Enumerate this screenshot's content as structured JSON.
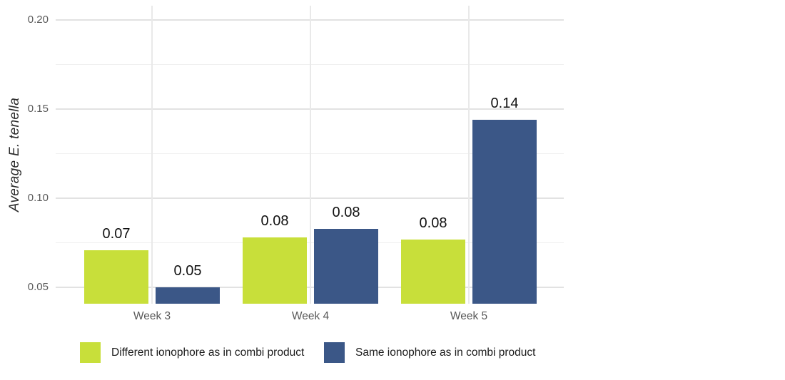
{
  "figure": {
    "y_axis_title": "Average E. tenella"
  },
  "legend": {
    "items": [
      {
        "label": "Different ionophore as in combi product",
        "color": "#c8df3a"
      },
      {
        "label": "Same ionophore as in combi product",
        "color": "#3b5787"
      }
    ]
  },
  "chart_data": {
    "type": "bar",
    "title": "",
    "xlabel": "",
    "ylabel": "Average E. tenella",
    "categories": [
      "Week 3",
      "Week 4",
      "Week 5"
    ],
    "series": [
      {
        "name": "Different ionophore as in combi product",
        "color": "#c8df3a",
        "values": [
          0.071,
          0.078,
          0.077
        ],
        "labels": [
          "0.07",
          "0.08",
          "0.08"
        ]
      },
      {
        "name": "Same ionophore as in combi product",
        "color": "#3b5787",
        "values": [
          0.05,
          0.083,
          0.144
        ],
        "labels": [
          "0.05",
          "0.08",
          "0.14"
        ]
      }
    ],
    "y_ticks": [
      0.05,
      0.1,
      0.15,
      0.2
    ],
    "y_tick_labels": [
      "0.05",
      "0.10",
      "0.15",
      "0.20"
    ],
    "y_minor_ticks": [
      0.075,
      0.125,
      0.175
    ],
    "ylim": [
      0.042,
      0.208
    ],
    "grid": true,
    "legend_position": "bottom",
    "bar_label_color": "#111111",
    "grid_major_color": "#e2e2e2",
    "grid_minor_color": "#f0f0f0",
    "tick_label_color": "#595959"
  }
}
